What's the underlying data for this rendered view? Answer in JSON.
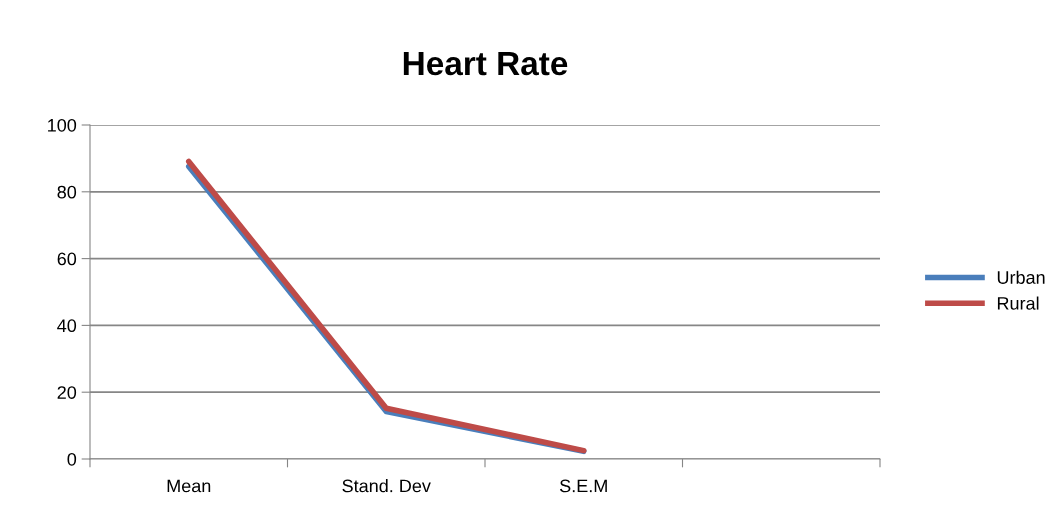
{
  "chart_data": {
    "type": "line",
    "title": "Heart Rate",
    "categories": [
      "Mean",
      "Stand. Dev",
      "S.E.M",
      null
    ],
    "series": [
      {
        "name": "Urban",
        "color": "#4a7ebb",
        "values": [
          87.6,
          14.2,
          2.3,
          null
        ]
      },
      {
        "name": "Rural",
        "color": "#be4b48",
        "values": [
          89.1,
          15.2,
          2.5,
          null
        ]
      }
    ],
    "ylim": [
      0,
      100
    ],
    "yticks": [
      0,
      20,
      40,
      60,
      80,
      100
    ],
    "grid": "y",
    "legend": "right",
    "marker": "none",
    "line_style": "solid"
  }
}
